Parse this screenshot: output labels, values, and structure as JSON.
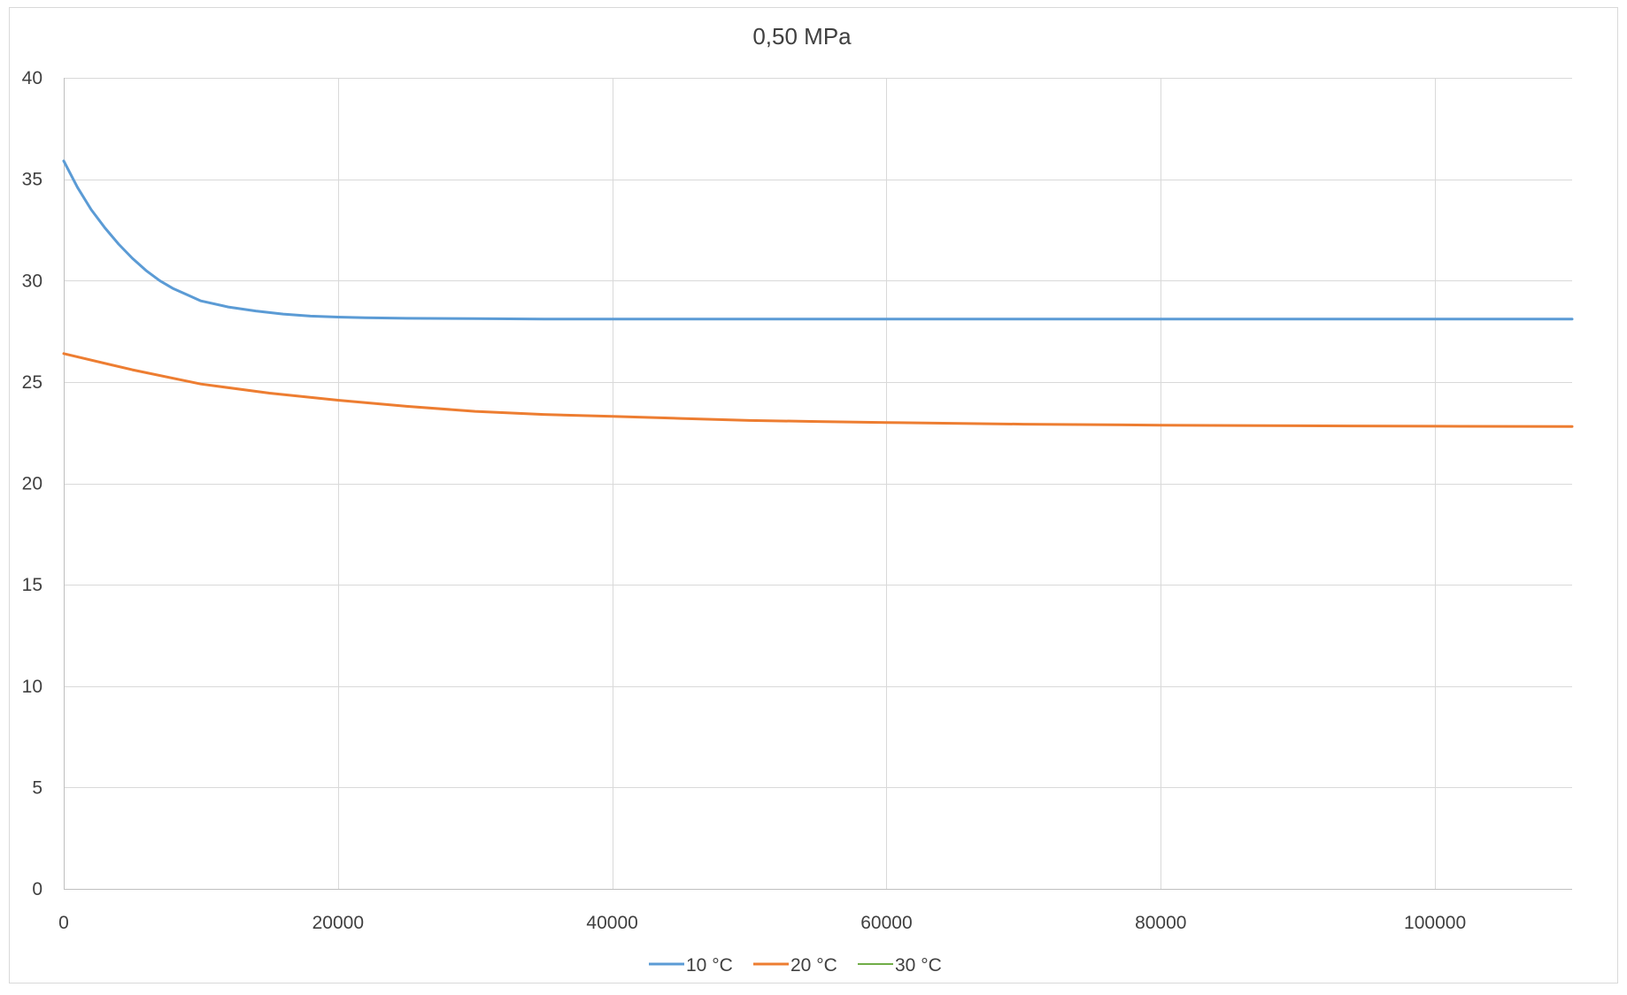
{
  "chart_data": {
    "type": "line",
    "title": "0,50 MPa",
    "xlabel": "",
    "ylabel": "",
    "xlim": [
      0,
      110000
    ],
    "ylim": [
      0,
      40
    ],
    "x_ticks": [
      0,
      20000,
      40000,
      60000,
      80000,
      100000
    ],
    "y_ticks": [
      0,
      5,
      10,
      15,
      20,
      25,
      30,
      35,
      40
    ],
    "x_tick_labels": [
      "0",
      "20000",
      "40000",
      "60000",
      "80000",
      "100000"
    ],
    "y_tick_labels": [
      "0",
      "5",
      "10",
      "15",
      "20",
      "25",
      "30",
      "35",
      "40"
    ],
    "grid": true,
    "legend_position": "bottom",
    "series": [
      {
        "name": "10 °C",
        "color": "#5b9bd5",
        "x": [
          0,
          1000,
          2000,
          3000,
          4000,
          5000,
          6000,
          7000,
          8000,
          9000,
          10000,
          12000,
          14000,
          16000,
          18000,
          20000,
          22000,
          25000,
          30000,
          35000,
          40000,
          50000,
          60000,
          70000,
          80000,
          90000,
          100000,
          110000
        ],
        "y": [
          35.9,
          34.6,
          33.5,
          32.6,
          31.8,
          31.1,
          30.5,
          30.0,
          29.6,
          29.3,
          29.0,
          28.7,
          28.5,
          28.35,
          28.25,
          28.2,
          28.17,
          28.14,
          28.12,
          28.1,
          28.1,
          28.1,
          28.1,
          28.1,
          28.1,
          28.1,
          28.1,
          28.1
        ]
      },
      {
        "name": "20 °C",
        "color": "#ed7d31",
        "x": [
          0,
          5000,
          10000,
          15000,
          20000,
          25000,
          30000,
          35000,
          40000,
          45000,
          50000,
          55000,
          60000,
          70000,
          80000,
          90000,
          100000,
          110000
        ],
        "y": [
          26.4,
          25.6,
          24.9,
          24.45,
          24.1,
          23.8,
          23.55,
          23.4,
          23.3,
          23.2,
          23.1,
          23.05,
          23.0,
          22.92,
          22.87,
          22.84,
          22.82,
          22.8
        ]
      },
      {
        "name": "30 °C",
        "color": "#70ad47",
        "x": [],
        "y": []
      }
    ]
  }
}
